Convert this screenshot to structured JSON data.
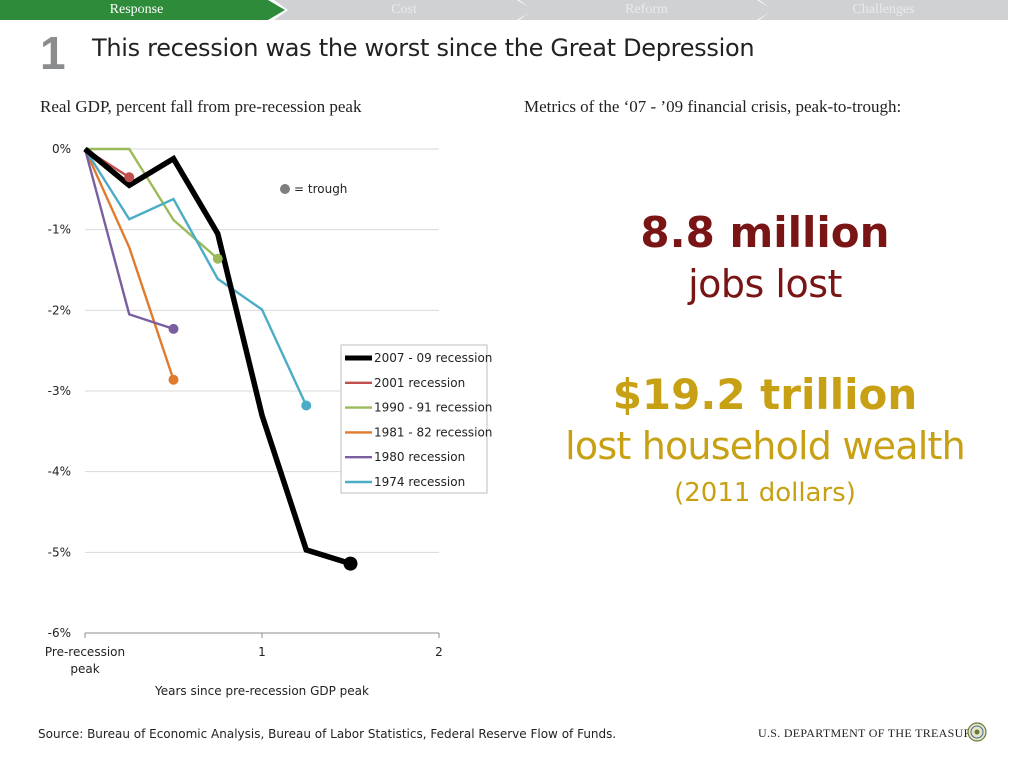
{
  "nav": {
    "tabs": [
      {
        "label": "Response",
        "active": true
      },
      {
        "label": "Cost",
        "active": false
      },
      {
        "label": "Reform",
        "active": false
      },
      {
        "label": "Challenges",
        "active": false
      }
    ],
    "active_color": "#2e8b3a",
    "inactive_color": "#cfd1d3"
  },
  "slide": {
    "number": "1",
    "title": "This recession was the worst since the Great Depression"
  },
  "chart_data": {
    "type": "line",
    "title": "Real GDP, percent fall from pre-recession peak",
    "xlabel": "Years since pre-recession GDP peak",
    "ylabel": "",
    "xlim": [
      0,
      2
    ],
    "ylim": [
      -6,
      0
    ],
    "x_ticks": [
      {
        "value": 0,
        "label": "Pre-recession peak"
      },
      {
        "value": 1,
        "label": "1"
      },
      {
        "value": 2,
        "label": "2"
      }
    ],
    "y_ticks": [
      {
        "value": 0,
        "label": "0%"
      },
      {
        "value": -1,
        "label": "-1%"
      },
      {
        "value": -2,
        "label": "-2%"
      },
      {
        "value": -3,
        "label": "-3%"
      },
      {
        "value": -4,
        "label": "-4%"
      },
      {
        "value": -5,
        "label": "-5%"
      },
      {
        "value": -6,
        "label": "-6%"
      }
    ],
    "grid": true,
    "legend_position": "right",
    "trough_note": "= trough",
    "series": [
      {
        "name": "2007 - 09 recession",
        "color": "#000000",
        "x": [
          0,
          0.25,
          0.5,
          0.75,
          1.0,
          1.25,
          1.5
        ],
        "y": [
          0,
          -0.45,
          -0.12,
          -1.05,
          -3.3,
          -4.97,
          -5.14
        ]
      },
      {
        "name": "2001 recession",
        "color": "#c0504d",
        "x": [
          0,
          0.25
        ],
        "y": [
          0,
          -0.35
        ]
      },
      {
        "name": "1990 - 91 recession",
        "color": "#9bbb59",
        "x": [
          0,
          0.25,
          0.5,
          0.75
        ],
        "y": [
          0,
          0,
          -0.88,
          -1.36
        ]
      },
      {
        "name": "1981 - 82 recession",
        "color": "#e07b2d",
        "x": [
          0,
          0.25,
          0.5
        ],
        "y": [
          0,
          -1.22,
          -2.86
        ]
      },
      {
        "name": "1980 recession",
        "color": "#7a5fa0",
        "x": [
          0,
          0.25,
          0.5
        ],
        "y": [
          0,
          -2.05,
          -2.23
        ]
      },
      {
        "name": "1974 recession",
        "color": "#4bacc6",
        "x": [
          0,
          0.25,
          0.5,
          0.75,
          1.0,
          1.25
        ],
        "y": [
          0,
          -0.87,
          -0.62,
          -1.61,
          -1.99,
          -3.18
        ]
      }
    ]
  },
  "metrics": {
    "title": "Metrics of the ‘07 - ’09 financial crisis, peak-to-trough:",
    "items": [
      {
        "value": "8.8 million",
        "label": "jobs lost",
        "color": "#7a1515"
      },
      {
        "value": "$19.2 trillion",
        "label": "lost household wealth",
        "note": "(2011 dollars)",
        "color": "#c8a013"
      }
    ]
  },
  "footer": {
    "source": "Source: Bureau of Economic Analysis, Bureau of Labor Statistics, Federal Reserve Flow of Funds.",
    "agency": "U.S. DEPARTMENT OF THE TREASURY"
  }
}
